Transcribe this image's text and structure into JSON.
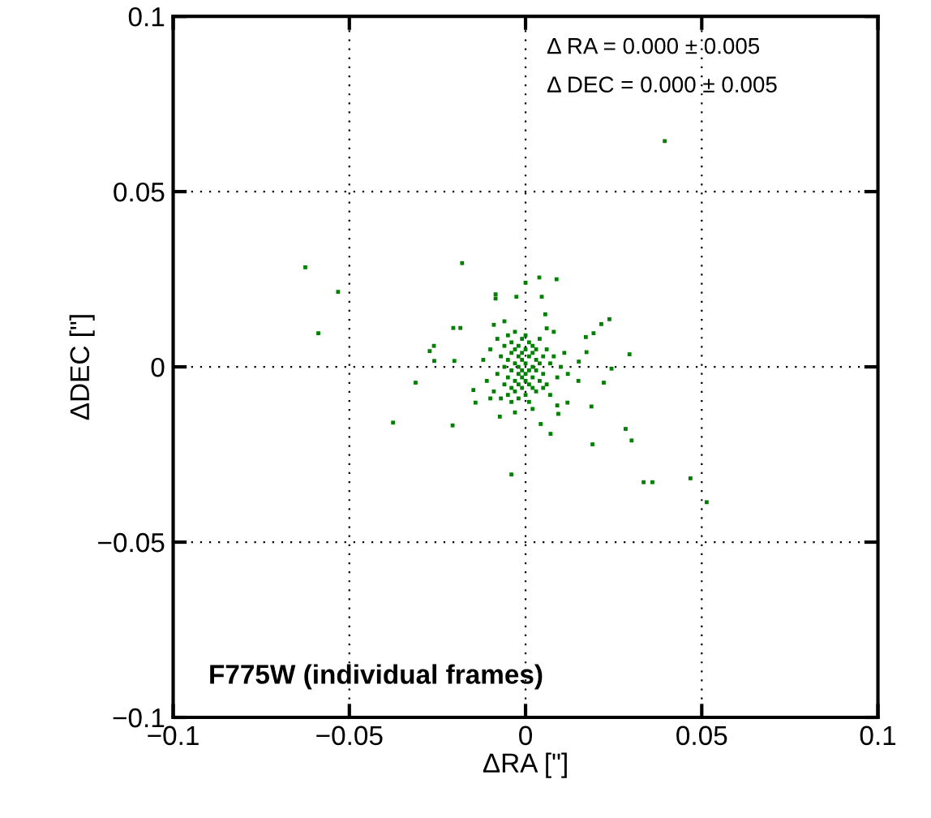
{
  "chart_data": {
    "type": "scatter",
    "xlabel": "ΔRA [\"]",
    "ylabel": "ΔDEC [\"]",
    "annotations": [
      "Δ RA = 0.000 ± 0.005",
      "Δ DEC = 0.000 ± 0.005",
      "F775W (individual frames)"
    ],
    "xlim": [
      -0.1,
      0.1
    ],
    "ylim": [
      -0.1,
      0.1
    ],
    "xticks": [
      {
        "value": -0.1,
        "label": "−0.1"
      },
      {
        "value": -0.05,
        "label": "−0.05"
      },
      0,
      0.05,
      0.1
    ],
    "yticks": [
      {
        "value": -0.1,
        "label": "−0.1"
      },
      {
        "value": -0.05,
        "label": "−0.05"
      },
      0,
      0.05,
      0.1
    ],
    "grid": true,
    "marker": "square",
    "legend": false,
    "series": [
      {
        "color": "#008000",
        "x": [
          -0.0625,
          -0.0532,
          -0.0588,
          -0.018,
          -0.0312,
          -0.0376,
          -0.0207,
          -0.004,
          -0.0205,
          -0.0185,
          -0.026,
          -0.0272,
          -0.0259,
          -0.0202,
          -0.0148,
          -0.0142,
          -0.0073,
          0.0,
          0.0039,
          0.0088,
          0.0071,
          0.0043,
          -0.0085,
          -0.0085,
          -0.0026,
          0.0046,
          0.0056,
          0.0395,
          0.0238,
          0.0215,
          0.0193,
          0.0171,
          0.0295,
          0.0244,
          0.0222,
          0.015,
          0.0187,
          0.019,
          0.0284,
          0.0301,
          0.0335,
          0.036,
          0.0468,
          0.0514,
          0.0093,
          0.0119,
          0.0173,
          0.0151,
          -0.012,
          -0.011,
          -0.01,
          -0.009,
          -0.008,
          -0.008,
          -0.007,
          -0.007,
          -0.006,
          -0.006,
          -0.006,
          -0.005,
          -0.005,
          -0.005,
          -0.005,
          -0.004,
          -0.004,
          -0.004,
          -0.004,
          -0.004,
          -0.003,
          -0.003,
          -0.003,
          -0.003,
          -0.003,
          -0.002,
          -0.002,
          -0.002,
          -0.002,
          -0.002,
          -0.002,
          -0.001,
          -0.001,
          -0.001,
          -0.001,
          -0.001,
          -0.001,
          0.0,
          0.0,
          0.0,
          0.0,
          0.0,
          0.0,
          0.001,
          0.001,
          0.001,
          0.001,
          0.001,
          0.002,
          0.002,
          0.002,
          0.002,
          0.002,
          0.003,
          0.003,
          0.003,
          0.003,
          0.004,
          0.004,
          0.004,
          0.005,
          0.005,
          0.005,
          0.006,
          0.006,
          0.007,
          0.007,
          0.008,
          0.009,
          0.01,
          0.011,
          0.012,
          -0.009,
          -0.006,
          -0.003,
          0.002,
          0.006,
          0.009,
          -0.01,
          0.008
        ],
        "values": [
          0.0284,
          0.0214,
          0.0096,
          0.0296,
          -0.0045,
          -0.0159,
          -0.0167,
          -0.0307,
          0.0111,
          0.0111,
          0.006,
          0.0045,
          0.0017,
          0.0017,
          -0.0066,
          -0.0102,
          -0.0142,
          0.024,
          0.0255,
          0.025,
          -0.0191,
          -0.0163,
          0.0207,
          0.0195,
          0.02,
          0.02,
          0.015,
          0.0644,
          0.0136,
          0.0122,
          0.0096,
          0.0085,
          0.0036,
          -0.0005,
          -0.0045,
          -0.004,
          -0.0113,
          -0.0221,
          -0.0177,
          -0.021,
          -0.0329,
          -0.0329,
          -0.0318,
          -0.0386,
          -0.0134,
          -0.0102,
          0.0042,
          0.0015,
          0.002,
          -0.004,
          0.005,
          -0.007,
          0.008,
          -0.002,
          0.003,
          -0.009,
          0.0,
          0.006,
          -0.005,
          0.009,
          -0.003,
          0.002,
          -0.008,
          0.004,
          -0.001,
          0.007,
          -0.006,
          -0.01,
          0.001,
          0.005,
          -0.004,
          -0.007,
          0.01,
          0.003,
          -0.002,
          0.006,
          -0.005,
          -0.009,
          0.0,
          -0.001,
          0.004,
          -0.003,
          0.008,
          -0.006,
          0.002,
          0.001,
          -0.004,
          0.005,
          -0.008,
          0.009,
          -0.002,
          0.003,
          -0.005,
          0.007,
          -0.001,
          -0.01,
          0.0,
          0.004,
          -0.006,
          0.006,
          -0.003,
          0.002,
          -0.007,
          0.005,
          -0.001,
          0.008,
          -0.004,
          0.001,
          0.003,
          -0.006,
          -0.002,
          0.005,
          -0.005,
          0.001,
          -0.008,
          0.003,
          -0.003,
          0.0,
          0.004,
          -0.002,
          0.012,
          0.013,
          -0.013,
          -0.012,
          0.011,
          -0.011,
          -0.009,
          0.01
        ]
      }
    ]
  }
}
